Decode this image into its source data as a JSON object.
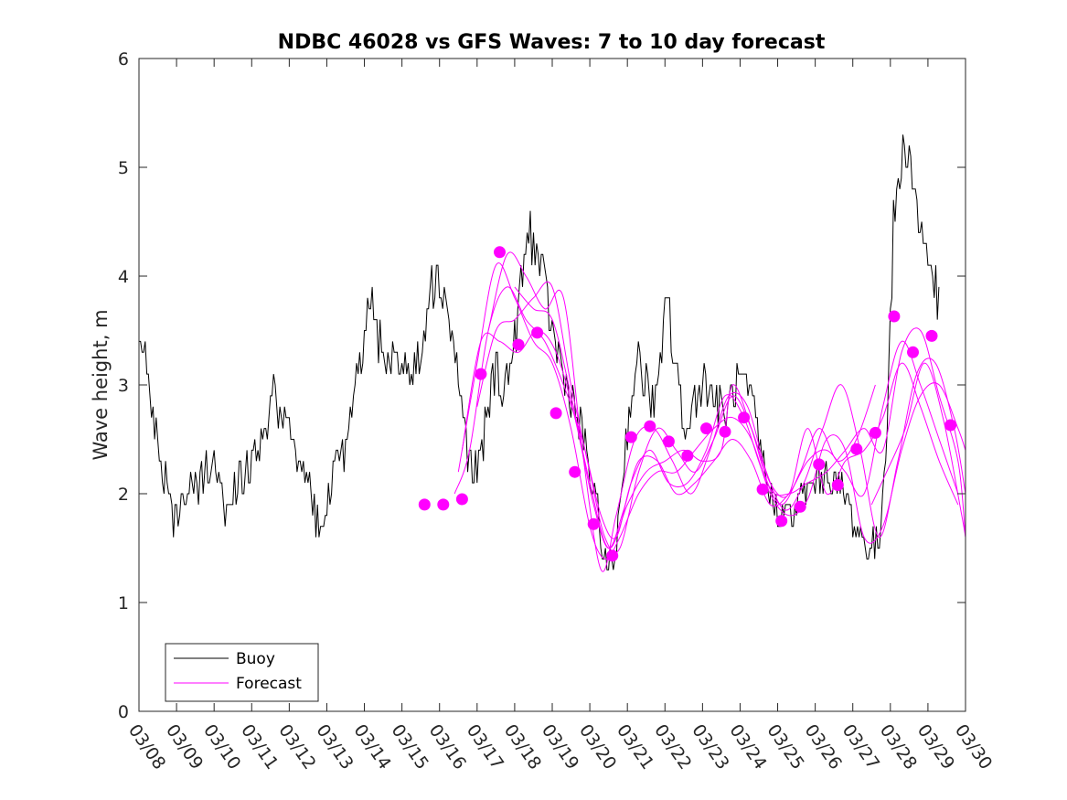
{
  "chart_data": {
    "type": "line",
    "title": "NDBC 46028 vs GFS Waves: 7 to 10 day forecast",
    "xlabel": "",
    "ylabel": "Wave height, m",
    "xlim": [
      0,
      22
    ],
    "ylim": [
      0,
      6
    ],
    "yticks": [
      0,
      1,
      2,
      3,
      4,
      5,
      6
    ],
    "x_tick_labels": [
      "03/08",
      "03/09",
      "03/10",
      "03/11",
      "03/12",
      "03/13",
      "03/14",
      "03/15",
      "03/16",
      "03/17",
      "03/18",
      "03/19",
      "03/20",
      "03/21",
      "03/22",
      "03/23",
      "03/24",
      "03/25",
      "03/26",
      "03/27",
      "03/28",
      "03/29",
      "03/30"
    ],
    "x_units": "days since 03/08 00:00",
    "grid": false,
    "legend_position": "bottom-left",
    "colors": {
      "buoy": "#000000",
      "forecast": "#ff00ff",
      "axes": "#262626"
    },
    "series": [
      {
        "name": "Buoy",
        "color": "#000000",
        "style": "line",
        "keypoints": [
          [
            0.0,
            3.6
          ],
          [
            0.2,
            3.2
          ],
          [
            0.5,
            2.4
          ],
          [
            0.8,
            2.0
          ],
          [
            0.9,
            1.7
          ],
          [
            1.2,
            2.0
          ],
          [
            1.5,
            2.0
          ],
          [
            1.8,
            2.2
          ],
          [
            2.0,
            2.3
          ],
          [
            2.2,
            2.1
          ],
          [
            2.35,
            1.75
          ],
          [
            2.6,
            2.1
          ],
          [
            3.0,
            2.3
          ],
          [
            3.4,
            2.5
          ],
          [
            3.55,
            3.0
          ],
          [
            3.7,
            2.6
          ],
          [
            4.0,
            2.55
          ],
          [
            4.3,
            2.3
          ],
          [
            4.55,
            2.1
          ],
          [
            4.7,
            1.8
          ],
          [
            4.85,
            1.7
          ],
          [
            5.0,
            1.8
          ],
          [
            5.2,
            2.2
          ],
          [
            5.5,
            2.4
          ],
          [
            5.8,
            3.0
          ],
          [
            6.0,
            3.5
          ],
          [
            6.1,
            3.9
          ],
          [
            6.3,
            3.5
          ],
          [
            6.6,
            3.3
          ],
          [
            7.0,
            3.2
          ],
          [
            7.3,
            3.1
          ],
          [
            7.5,
            3.3
          ],
          [
            7.7,
            3.8
          ],
          [
            7.9,
            4.0
          ],
          [
            8.1,
            3.9
          ],
          [
            8.3,
            3.5
          ],
          [
            8.5,
            3.1
          ],
          [
            8.7,
            2.5
          ],
          [
            8.9,
            2.15
          ],
          [
            9.1,
            2.3
          ],
          [
            9.3,
            2.8
          ],
          [
            9.5,
            3.2
          ],
          [
            9.7,
            2.9
          ],
          [
            10.0,
            3.4
          ],
          [
            10.2,
            4.0
          ],
          [
            10.4,
            4.45
          ],
          [
            10.6,
            4.2
          ],
          [
            10.8,
            3.9
          ],
          [
            11.0,
            3.5
          ],
          [
            11.3,
            3.1
          ],
          [
            11.6,
            2.8
          ],
          [
            11.9,
            2.4
          ],
          [
            12.2,
            1.8
          ],
          [
            12.4,
            1.4
          ],
          [
            12.55,
            1.3
          ],
          [
            12.7,
            1.5
          ],
          [
            12.9,
            2.3
          ],
          [
            13.1,
            2.9
          ],
          [
            13.3,
            3.2
          ],
          [
            13.5,
            3.0
          ],
          [
            13.7,
            2.8
          ],
          [
            13.9,
            3.1
          ],
          [
            14.05,
            4.0
          ],
          [
            14.2,
            3.3
          ],
          [
            14.4,
            2.9
          ],
          [
            14.6,
            2.5
          ],
          [
            14.8,
            2.9
          ],
          [
            15.0,
            3.1
          ],
          [
            15.3,
            2.9
          ],
          [
            15.6,
            2.7
          ],
          [
            15.9,
            3.0
          ],
          [
            16.1,
            3.0
          ],
          [
            16.3,
            2.8
          ],
          [
            16.5,
            2.5
          ],
          [
            16.7,
            2.1
          ],
          [
            16.9,
            1.9
          ],
          [
            17.1,
            1.8
          ],
          [
            17.4,
            1.8
          ],
          [
            17.7,
            2.0
          ],
          [
            18.0,
            2.1
          ],
          [
            18.3,
            2.2
          ],
          [
            18.6,
            2.1
          ],
          [
            18.9,
            1.9
          ],
          [
            19.1,
            1.7
          ],
          [
            19.3,
            1.55
          ],
          [
            19.5,
            1.5
          ],
          [
            19.7,
            1.55
          ],
          [
            19.9,
            2.6
          ],
          [
            20.1,
            4.6
          ],
          [
            20.3,
            5.0
          ],
          [
            20.45,
            5.3
          ],
          [
            20.6,
            4.9
          ],
          [
            20.8,
            4.4
          ],
          [
            21.0,
            4.2
          ],
          [
            21.2,
            3.9
          ],
          [
            21.3,
            3.7
          ]
        ]
      },
      {
        "name": "Forecast",
        "color": "#ff00ff",
        "style": "line",
        "ensemble_curves": [
          [
            [
              8.4,
              2.0
            ],
            [
              8.8,
              2.4
            ],
            [
              9.3,
              3.5
            ],
            [
              9.8,
              3.9
            ],
            [
              10.3,
              3.6
            ],
            [
              10.8,
              3.4
            ],
            [
              11.3,
              3.0
            ],
            [
              11.8,
              2.5
            ],
            [
              12.3,
              1.8
            ],
            [
              12.7,
              1.6
            ],
            [
              13.1,
              2.1
            ],
            [
              13.6,
              2.4
            ],
            [
              14.1,
              2.1
            ],
            [
              14.6,
              2.1
            ],
            [
              15.1,
              2.4
            ],
            [
              15.6,
              2.9
            ],
            [
              16.1,
              2.7
            ],
            [
              16.6,
              2.2
            ],
            [
              17.1,
              1.9
            ],
            [
              17.6,
              2.2
            ],
            [
              18.1,
              2.6
            ],
            [
              18.6,
              2.3
            ],
            [
              19.1,
              2.5
            ],
            [
              19.6,
              3.0
            ]
          ],
          [
            [
              8.6,
              2.4
            ],
            [
              9.1,
              3.4
            ],
            [
              9.6,
              3.4
            ],
            [
              10.1,
              3.3
            ],
            [
              10.6,
              3.5
            ],
            [
              11.1,
              3.3
            ],
            [
              11.6,
              2.7
            ],
            [
              12.1,
              1.9
            ],
            [
              12.5,
              1.5
            ],
            [
              12.9,
              1.85
            ],
            [
              13.3,
              2.3
            ],
            [
              13.8,
              2.3
            ],
            [
              14.3,
              2.0
            ],
            [
              14.8,
              2.1
            ],
            [
              15.3,
              2.3
            ],
            [
              15.8,
              2.5
            ],
            [
              16.3,
              2.3
            ],
            [
              16.8,
              1.9
            ],
            [
              17.3,
              2.0
            ],
            [
              17.8,
              2.3
            ],
            [
              18.3,
              2.4
            ],
            [
              18.8,
              2.2
            ],
            [
              19.3,
              2.0
            ],
            [
              19.8,
              2.8
            ],
            [
              20.3,
              3.4
            ],
            [
              20.8,
              3.0
            ],
            [
              21.3,
              2.5
            ],
            [
              21.8,
              2.0
            ]
          ],
          [
            [
              8.5,
              2.2
            ],
            [
              9.0,
              3.2
            ],
            [
              9.5,
              4.1
            ],
            [
              10.0,
              3.8
            ],
            [
              10.5,
              3.4
            ],
            [
              11.0,
              3.2
            ],
            [
              11.5,
              2.6
            ],
            [
              12.0,
              1.7
            ],
            [
              12.4,
              1.4
            ],
            [
              12.8,
              1.6
            ],
            [
              13.3,
              2.0
            ],
            [
              13.8,
              2.2
            ],
            [
              14.3,
              2.2
            ],
            [
              14.8,
              2.4
            ],
            [
              15.3,
              2.6
            ],
            [
              15.8,
              2.7
            ],
            [
              16.3,
              2.5
            ],
            [
              16.8,
              2.0
            ],
            [
              17.3,
              1.8
            ],
            [
              17.8,
              1.95
            ],
            [
              18.3,
              2.5
            ],
            [
              18.8,
              2.4
            ],
            [
              19.3,
              1.6
            ],
            [
              19.8,
              1.7
            ],
            [
              20.3,
              2.4
            ],
            [
              20.8,
              2.9
            ],
            [
              21.3,
              3.0
            ],
            [
              21.8,
              2.6
            ],
            [
              22.0,
              2.4
            ]
          ],
          [
            [
              9.0,
              2.8
            ],
            [
              9.5,
              3.5
            ],
            [
              10.0,
              3.6
            ],
            [
              10.5,
              3.8
            ],
            [
              11.0,
              3.9
            ],
            [
              11.5,
              3.0
            ],
            [
              12.0,
              2.2
            ],
            [
              12.4,
              1.6
            ],
            [
              12.8,
              1.5
            ],
            [
              13.3,
              2.2
            ],
            [
              13.8,
              2.6
            ],
            [
              14.3,
              2.4
            ],
            [
              14.8,
              2.2
            ],
            [
              15.3,
              2.5
            ],
            [
              15.8,
              2.9
            ],
            [
              16.3,
              2.6
            ],
            [
              16.8,
              2.1
            ],
            [
              17.3,
              2.0
            ],
            [
              17.8,
              2.6
            ],
            [
              18.3,
              2.0
            ],
            [
              18.8,
              2.3
            ],
            [
              19.3,
              2.4
            ],
            [
              19.8,
              2.7
            ],
            [
              20.3,
              3.2
            ],
            [
              20.8,
              2.8
            ],
            [
              21.3,
              2.3
            ],
            [
              21.8,
              1.9
            ]
          ],
          [
            [
              9.3,
              3.5
            ],
            [
              9.8,
              4.2
            ],
            [
              10.3,
              4.0
            ],
            [
              10.8,
              3.7
            ],
            [
              11.3,
              3.8
            ],
            [
              11.8,
              2.4
            ],
            [
              12.3,
              1.3
            ],
            [
              12.7,
              1.8
            ],
            [
              13.2,
              2.5
            ],
            [
              13.7,
              2.6
            ],
            [
              14.2,
              2.3
            ],
            [
              14.7,
              2.0
            ],
            [
              15.2,
              2.4
            ],
            [
              15.7,
              2.9
            ],
            [
              16.2,
              2.8
            ],
            [
              16.7,
              2.2
            ],
            [
              17.2,
              1.85
            ],
            [
              17.7,
              2.1
            ],
            [
              18.2,
              2.6
            ],
            [
              18.7,
              3.0
            ],
            [
              19.2,
              2.4
            ],
            [
              19.7,
              1.6
            ],
            [
              20.2,
              2.3
            ],
            [
              20.7,
              3.1
            ],
            [
              21.2,
              3.2
            ],
            [
              21.7,
              2.6
            ],
            [
              22.0,
              2.0
            ]
          ],
          [
            [
              10.0,
              3.9
            ],
            [
              10.5,
              3.7
            ],
            [
              11.0,
              3.6
            ],
            [
              11.5,
              2.9
            ],
            [
              12.0,
              2.1
            ],
            [
              12.5,
              1.5
            ],
            [
              13.0,
              1.9
            ],
            [
              13.5,
              2.2
            ],
            [
              14.0,
              2.3
            ],
            [
              14.5,
              2.4
            ],
            [
              15.0,
              2.3
            ],
            [
              15.5,
              2.4
            ],
            [
              15.8,
              3.0
            ],
            [
              16.3,
              2.6
            ],
            [
              16.8,
              2.05
            ],
            [
              17.3,
              2.0
            ],
            [
              17.8,
              2.1
            ],
            [
              18.3,
              2.2
            ],
            [
              18.8,
              2.4
            ],
            [
              19.3,
              2.6
            ],
            [
              19.8,
              2.4
            ],
            [
              20.3,
              3.3
            ],
            [
              20.8,
              3.5
            ],
            [
              21.3,
              2.9
            ],
            [
              21.8,
              2.3
            ],
            [
              22.0,
              1.6
            ]
          ],
          [
            [
              19.5,
              1.9
            ],
            [
              19.9,
              2.2
            ],
            [
              20.4,
              2.6
            ],
            [
              20.9,
              3.2
            ],
            [
              21.4,
              2.7
            ],
            [
              21.9,
              1.8
            ],
            [
              22.0,
              1.6
            ]
          ]
        ],
        "markers": [
          [
            7.6,
            1.9
          ],
          [
            8.1,
            1.9
          ],
          [
            8.6,
            1.95
          ],
          [
            9.1,
            3.1
          ],
          [
            9.6,
            4.22
          ],
          [
            10.1,
            3.37
          ],
          [
            10.6,
            3.48
          ],
          [
            11.1,
            2.74
          ],
          [
            11.6,
            2.2
          ],
          [
            12.1,
            1.72
          ],
          [
            12.6,
            1.43
          ],
          [
            13.1,
            2.52
          ],
          [
            13.6,
            2.62
          ],
          [
            14.1,
            2.48
          ],
          [
            14.6,
            2.35
          ],
          [
            15.1,
            2.6
          ],
          [
            15.6,
            2.57
          ],
          [
            16.1,
            2.7
          ],
          [
            16.6,
            2.04
          ],
          [
            17.1,
            1.75
          ],
          [
            17.6,
            1.88
          ],
          [
            18.1,
            2.27
          ],
          [
            18.6,
            2.08
          ],
          [
            19.1,
            2.41
          ],
          [
            19.6,
            2.56
          ],
          [
            20.1,
            3.63
          ],
          [
            20.6,
            3.3
          ],
          [
            21.1,
            3.45
          ],
          [
            21.6,
            2.63
          ]
        ]
      }
    ]
  }
}
